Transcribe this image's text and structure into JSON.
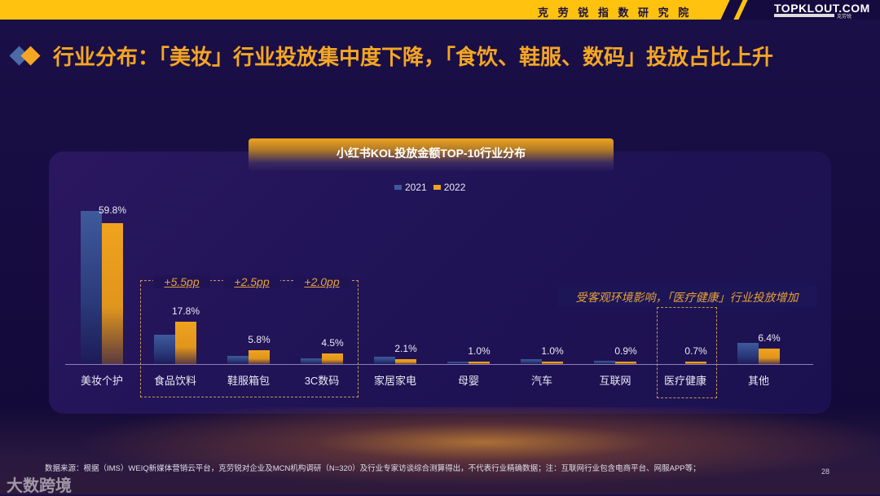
{
  "header": {
    "institute": "克 劳 锐 指 数 研 究 院",
    "logo": "TOPKLOUT.COM",
    "logo_sub": "克劳锐"
  },
  "title": "行业分布：「美妆」行业投放集中度下降，「食饮、鞋服、数码」投放占比上升",
  "colors": {
    "accent": "#ffc20e",
    "title": "#f5a623",
    "bar_2021": "#3e5a9c",
    "bar_2022": "#f0a31e",
    "background": "#150b3e"
  },
  "chart_data": {
    "type": "bar",
    "title": "小红书KOL投放金额TOP-10行业分布",
    "legend": [
      "2021",
      "2022"
    ],
    "legend_position": "top",
    "categories": [
      "美妆个护",
      "食品饮料",
      "鞋服箱包",
      "3C数码",
      "家居家电",
      "母婴",
      "汽车",
      "互联网",
      "医疗健康",
      "其他"
    ],
    "series": [
      {
        "name": "2021",
        "values": [
          65.0,
          12.3,
          3.3,
          2.5,
          3.0,
          1.1,
          2.0,
          1.3,
          0.0,
          9.0
        ]
      },
      {
        "name": "2022",
        "values": [
          59.8,
          17.8,
          5.8,
          4.5,
          2.1,
          1.0,
          1.0,
          0.9,
          0.7,
          6.4
        ]
      }
    ],
    "data_labels": [
      "59.8%",
      "17.8%",
      "5.8%",
      "4.5%",
      "2.1%",
      "1.0%",
      "1.0%",
      "0.9%",
      "0.7%",
      "6.4%"
    ],
    "annotations": [
      {
        "category": "食品饮料",
        "text": "+5.5pp"
      },
      {
        "category": "鞋服箱包",
        "text": "+2.5pp"
      },
      {
        "category": "3C数码",
        "text": "+2.0pp"
      },
      {
        "category": "医疗健康",
        "text": "受客观环境影响，「医疗健康」行业投放增加"
      }
    ],
    "xlabel": "",
    "ylabel": "",
    "grid": false
  },
  "footer": {
    "source": "数据来源：根据（IMS）WEIQ新媒体营销云平台，克劳锐对企业及MCN机构调研（N=320）及行业专家访谈综合测算得出，不代表行业精确数据；注：互联网行业包含电商平台、网服APP等；",
    "page": "28",
    "watermark": "大数跨境"
  }
}
